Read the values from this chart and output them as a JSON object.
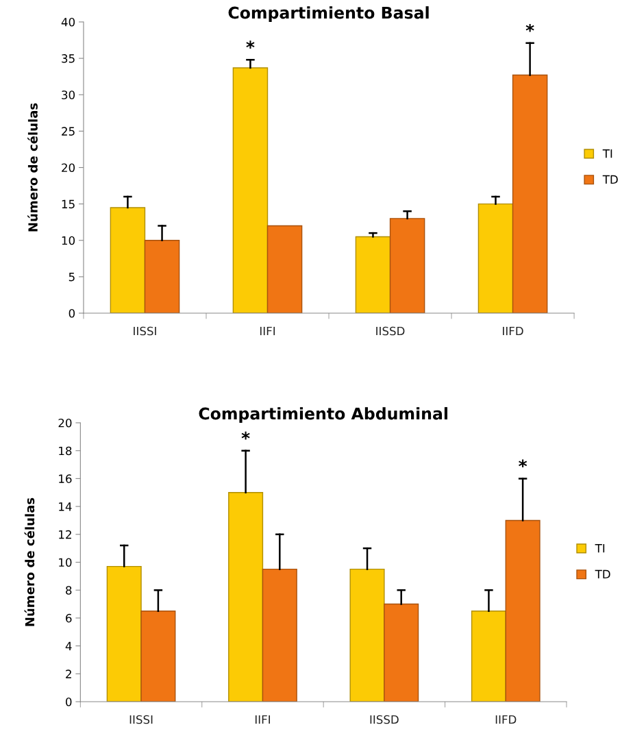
{
  "chart_data": [
    {
      "type": "bar",
      "title": "Compartimiento Basal",
      "ylabel": "Número de células",
      "categories": [
        "IISSI",
        "IIFI",
        "IISSD",
        "IIFD"
      ],
      "series": [
        {
          "name": "TI",
          "color": "#fccb05",
          "values": [
            14.5,
            33.7,
            10.5,
            15
          ],
          "errors": [
            [
              14.5,
              16
            ],
            [
              33.7,
              34.8
            ],
            [
              10.5,
              11
            ],
            [
              15,
              16
            ]
          ]
        },
        {
          "name": "TD",
          "color": "#f07514",
          "values": [
            10,
            12,
            13,
            32.7
          ],
          "errors": [
            [
              10,
              12
            ],
            null,
            [
              13,
              14
            ],
            [
              32.7,
              37.1
            ]
          ]
        }
      ],
      "ylim": [
        0,
        40
      ],
      "yticks": [
        0,
        5,
        10,
        15,
        20,
        25,
        30,
        35,
        40
      ],
      "legend": "right",
      "annotations": [
        "*",
        "*"
      ]
    },
    {
      "type": "bar",
      "title": "Compartimiento Abduminal",
      "ylabel": "Número de células",
      "categories": [
        "IISSI",
        "IIFI",
        "IISSD",
        "IIFD"
      ],
      "series": [
        {
          "name": "TI",
          "color": "#fccb05",
          "values": [
            9.7,
            15,
            9.5,
            6.5
          ],
          "errors": [
            [
              9.7,
              11.2
            ],
            [
              15,
              18
            ],
            [
              9.5,
              11
            ],
            [
              6.5,
              8
            ]
          ]
        },
        {
          "name": "TD",
          "color": "#f07514",
          "values": [
            6.5,
            9.5,
            7,
            13
          ],
          "errors": [
            [
              6.5,
              8
            ],
            [
              9.5,
              12
            ],
            [
              7,
              8
            ],
            [
              13,
              16
            ]
          ]
        }
      ],
      "ylim": [
        0,
        20
      ],
      "yticks": [
        0,
        2,
        4,
        6,
        8,
        10,
        12,
        14,
        16,
        18,
        20
      ],
      "legend": "right",
      "annotations": [
        "*",
        "*"
      ]
    }
  ]
}
